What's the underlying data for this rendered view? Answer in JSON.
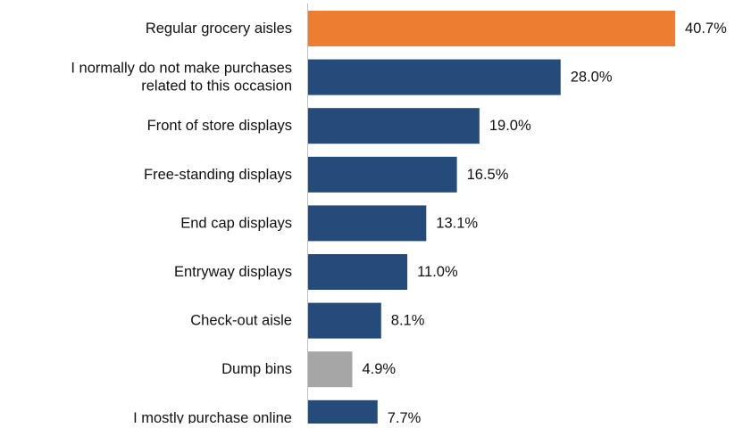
{
  "chart_data": {
    "type": "bar",
    "orientation": "horizontal",
    "categories": [
      "Regular grocery aisles",
      "I normally do not make purchases related to this occasion",
      "Front of store displays",
      "Free-standing displays",
      "End cap displays",
      "Entryway displays",
      "Check-out aisle",
      "Dump bins",
      "I mostly purchase online"
    ],
    "category_lines": [
      [
        "Regular grocery aisles"
      ],
      [
        "I normally do not make purchases",
        "related to this occasion"
      ],
      [
        "Front of store displays"
      ],
      [
        "Free-standing displays"
      ],
      [
        "End cap displays"
      ],
      [
        "Entryway displays"
      ],
      [
        "Check-out aisle"
      ],
      [
        "Dump bins"
      ],
      [
        "I mostly purchase online"
      ]
    ],
    "values": [
      40.7,
      28.0,
      19.0,
      16.5,
      13.1,
      11.0,
      8.1,
      4.9,
      7.7
    ],
    "value_labels": [
      "40.7%",
      "28.0%",
      "19.0%",
      "16.5%",
      "13.1%",
      "11.0%",
      "8.1%",
      "4.9%",
      "7.7%"
    ],
    "bar_colors": [
      "#ED7D31",
      "#244B7A",
      "#244B7A",
      "#244B7A",
      "#244B7A",
      "#244B7A",
      "#244B7A",
      "#A6A6A6",
      "#244B7A"
    ],
    "xlim": [
      0,
      40.7
    ],
    "title": "",
    "xlabel": "",
    "ylabel": "",
    "grid": false,
    "legend": "none"
  }
}
